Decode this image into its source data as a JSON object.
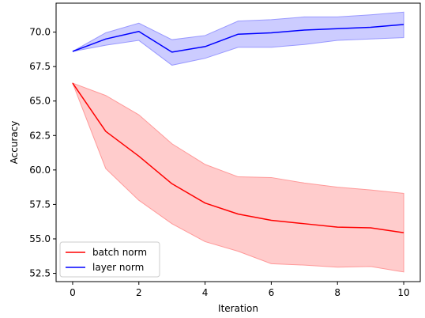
{
  "chart_data": {
    "type": "line",
    "title": "",
    "xlabel": "Iteration",
    "ylabel": "Accuracy",
    "xlim": [
      -0.5,
      10.5
    ],
    "ylim": [
      51.9,
      72.1
    ],
    "xticks": [
      0,
      2,
      4,
      6,
      8,
      10
    ],
    "xtick_labels": [
      "0",
      "2",
      "4",
      "6",
      "8",
      "10"
    ],
    "yticks": [
      52.5,
      55.0,
      57.5,
      60.0,
      62.5,
      65.0,
      67.5,
      70.0
    ],
    "ytick_labels": [
      "52.5",
      "55.0",
      "57.5",
      "60.0",
      "62.5",
      "65.0",
      "67.5",
      "70.0"
    ],
    "grid": false,
    "legend_position": "lower-left",
    "x": [
      0,
      1,
      2,
      3,
      4,
      5,
      6,
      7,
      8,
      9,
      10
    ],
    "series": [
      {
        "name": "batch norm",
        "color": "#ff0000",
        "band_color": "#ff9999",
        "values": [
          66.3,
          62.8,
          61.0,
          59.0,
          57.6,
          56.8,
          56.35,
          56.1,
          55.85,
          55.8,
          55.45
        ],
        "lower": [
          66.3,
          60.1,
          57.8,
          56.1,
          54.8,
          54.1,
          53.2,
          53.1,
          52.95,
          53.0,
          52.6
        ],
        "upper": [
          66.3,
          65.4,
          64.0,
          61.9,
          60.4,
          59.5,
          59.45,
          59.05,
          58.75,
          58.55,
          58.3
        ]
      },
      {
        "name": "layer norm",
        "color": "#0000ff",
        "band_color": "#9999ff",
        "values": [
          68.6,
          69.5,
          70.05,
          68.55,
          68.95,
          69.85,
          69.95,
          70.15,
          70.25,
          70.35,
          70.55
        ],
        "lower": [
          68.6,
          69.05,
          69.4,
          67.6,
          68.1,
          68.9,
          68.9,
          69.1,
          69.4,
          69.5,
          69.6
        ],
        "upper": [
          68.6,
          69.95,
          70.65,
          69.45,
          69.75,
          70.8,
          70.9,
          71.1,
          71.1,
          71.25,
          71.45
        ]
      }
    ]
  }
}
